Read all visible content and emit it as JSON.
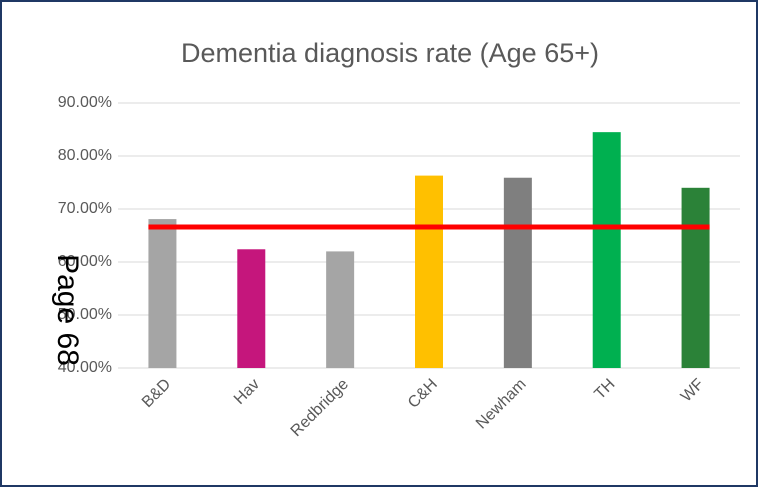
{
  "chart_data": {
    "type": "bar",
    "title": "Dementia diagnosis rate (Age 65+)",
    "categories": [
      "B&D",
      "Hav",
      "Redbridge",
      "C&H",
      "Newham",
      "TH",
      "WF"
    ],
    "values": [
      68.1,
      62.4,
      62.0,
      76.3,
      75.9,
      84.5,
      74.0
    ],
    "colors": [
      "#a5a5a5",
      "#c5167c",
      "#a5a5a5",
      "#ffc000",
      "#7f7f7f",
      "#00b050",
      "#2b8238"
    ],
    "ylim": [
      40,
      90
    ],
    "yticks": [
      {
        "value": 40,
        "label": "40.00%"
      },
      {
        "value": 50,
        "label": "50.00%"
      },
      {
        "value": 60,
        "label": "60.00%"
      },
      {
        "value": 70,
        "label": "70.00%"
      },
      {
        "value": 80,
        "label": "80.00%"
      },
      {
        "value": 90,
        "label": "90.00%"
      }
    ],
    "grid": true,
    "reference_line": {
      "value": 66.6,
      "color": "#ff0000"
    },
    "annotation": "Page 68"
  }
}
